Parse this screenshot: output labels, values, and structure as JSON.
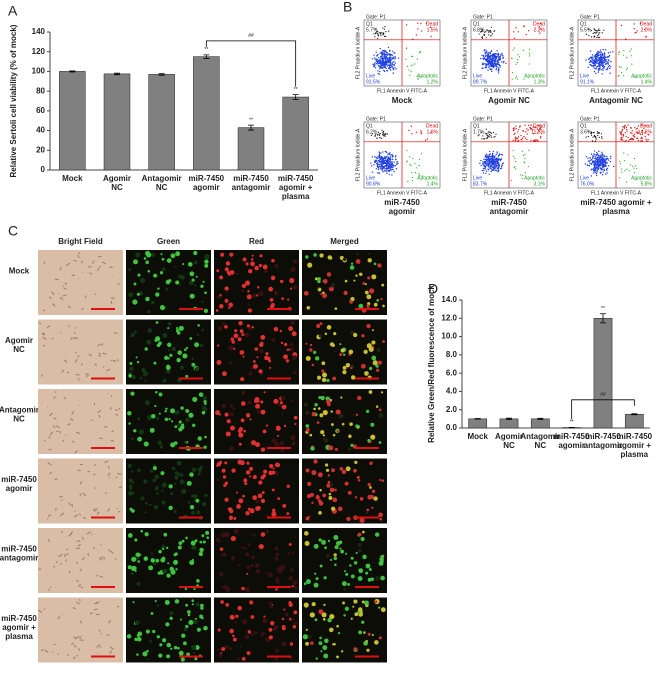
{
  "chart_data": [
    {
      "type": "bar",
      "panel": "A",
      "y_label": "Relative Sertoli cell viability (% of mock)",
      "categories": [
        "Mock",
        "Agomir\nNC",
        "Antagomir\nNC",
        "miR-7450\nagomir",
        "miR-7450\nantagomir",
        "miR-7450\nagomir +\nplasma"
      ],
      "values": [
        100,
        97.5,
        97,
        115,
        43,
        74
      ],
      "errors": [
        0.5,
        0.8,
        0.8,
        1.8,
        2.5,
        2.5
      ],
      "color": "#808080",
      "significance": [
        null,
        null,
        null,
        "**",
        "**",
        "**"
      ],
      "bracket": {
        "label": "##",
        "from": 3,
        "to": 5
      },
      "ylim": [
        0,
        140
      ],
      "yticks": [
        0,
        20,
        40,
        60,
        80,
        100,
        120,
        140
      ]
    },
    {
      "type": "bar",
      "panel": "D",
      "y_label": "Relative Green/Red fluorescence of mock",
      "categories": [
        "Mock",
        "Agomir\nNC",
        "Antagomir\nNC",
        "miR-7450\nagomir",
        "miR-7450\nantagomir",
        "miR-7450\nagomir +\nplasma"
      ],
      "values": [
        1,
        1,
        1,
        0.05,
        12,
        1.5
      ],
      "errors": [
        0.03,
        0.08,
        0.07,
        0.02,
        0.5,
        0.05
      ],
      "color": "#808080",
      "significance": [
        null,
        null,
        null,
        "**",
        "**",
        null
      ],
      "bracket": {
        "label": "##",
        "from": 3,
        "to": 5
      },
      "ylim": [
        0,
        14
      ],
      "yticks": [
        {
          "value": 0,
          "label": "0.0"
        },
        {
          "value": 2,
          "label": "2.0"
        },
        {
          "value": 4,
          "label": "4.0"
        },
        {
          "value": 6,
          "label": "6.0"
        },
        {
          "value": 8,
          "label": "8.0"
        },
        {
          "value": 10,
          "label": "10.0"
        },
        {
          "value": 12,
          "label": "12.0"
        },
        {
          "value": 14,
          "label": "14.0"
        }
      ]
    }
  ],
  "flow_cytometry": {
    "panel": "B",
    "gate": "Gate: P1",
    "q1": "Q1",
    "dead": "Dead",
    "live": "Live",
    "apoptotic": "Apoptotic",
    "x_label": "FL1 Annexin V FITC-A",
    "y_label": "FL2 Propidium Iodide-A",
    "plots": [
      {
        "title": "Mock",
        "q1_pct": "5.7%",
        "dead_pct": "1.5%",
        "live_pct": "91.5%",
        "apoptotic_pct": "1.2%"
      },
      {
        "title": "Agomir NC",
        "q1_pct": "6.8%",
        "dead_pct": "2.2%",
        "live_pct": "89.7%",
        "apoptotic_pct": "1.3%"
      },
      {
        "title": "Antagomir NC",
        "q1_pct": "5.5%",
        "dead_pct": "2.0%",
        "live_pct": "91.1%",
        "apoptotic_pct": "1.4%"
      },
      {
        "title": "miR-7450\nagomir",
        "q1_pct": "6.2%",
        "dead_pct": "1.6%",
        "live_pct": "90.8%",
        "apoptotic_pct": "1.4%"
      },
      {
        "title": "miR-7450\nantagomir",
        "q1_pct": "1.7%",
        "dead_pct": "11.5%",
        "live_pct": "83.7%",
        "apoptotic_pct": "3.1%"
      },
      {
        "title": "miR-7450 agomir +\nplasma",
        "q1_pct": "3.6%",
        "dead_pct": "14.6%",
        "live_pct": "76.0%",
        "apoptotic_pct": "5.8%"
      }
    ]
  },
  "fluorescence_images": {
    "panel": "C",
    "columns": [
      "Bright Field",
      "Green",
      "Red",
      "Merged"
    ],
    "rows": [
      "Mock",
      "Agomir\nNC",
      "Antagomir\nNC",
      "miR-7450\nagomir",
      "miR-7450\nantagomir",
      "miR-7450\nagomir +\nplasma"
    ]
  }
}
